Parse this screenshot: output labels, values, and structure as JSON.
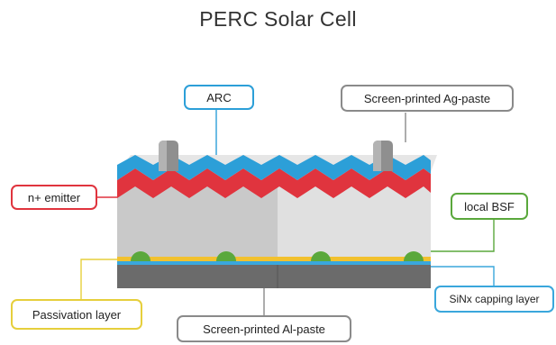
{
  "title": "PERC Solar Cell",
  "labels": {
    "arc": "ARC",
    "ag_paste": "Screen-printed Ag-paste",
    "emitter": "n+ emitter",
    "local_bsf": "local BSF",
    "passivation": "Passivation layer",
    "sinx": "SiNx capping layer",
    "al_paste": "Screen-printed Al-paste"
  },
  "colors": {
    "arc_blue": "#2c9fd8",
    "emitter_red": "#e0343e",
    "silicon_left": "#c9c9c9",
    "silicon_right": "#e0e0e0",
    "top_face": "#e6e6e6",
    "passivation_yellow": "#f2c12e",
    "sinx_blue": "#3aa7dc",
    "al_paste": "#6b6b6b",
    "ag_paste": "#8a8a8a",
    "bsf_green": "#5aa83c",
    "callout_yellow": "#e6cf3c",
    "callout_gray": "#8a8a8a"
  }
}
